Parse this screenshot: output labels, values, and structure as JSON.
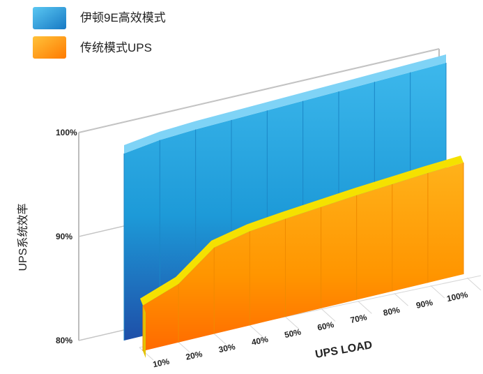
{
  "chart_data": {
    "type": "area",
    "categories": [
      "10%",
      "20%",
      "30%",
      "40%",
      "50%",
      "60%",
      "70%",
      "80%",
      "90%",
      "100%"
    ],
    "series": [
      {
        "name": "伊顿9E高效模式",
        "color": "#2aa6e0",
        "values": [
          98.8,
          99.3,
          99.5,
          99.6,
          99.7,
          99.8,
          99.9,
          100.0,
          100.1,
          100.2
        ]
      },
      {
        "name": "传统模式UPS",
        "color": "#ff8c00",
        "values": [
          87.0,
          89.0,
          93.3,
          94.5,
          95.1,
          95.6,
          96.1,
          96.5,
          96.9,
          97.2
        ]
      }
    ],
    "xlabel": "UPS LOAD",
    "ylabel": "UPS系统效率",
    "yticks": [
      "100%",
      "90%",
      "80%"
    ],
    "ylim": [
      80,
      100
    ],
    "legend": "top-left",
    "grid": true
  }
}
